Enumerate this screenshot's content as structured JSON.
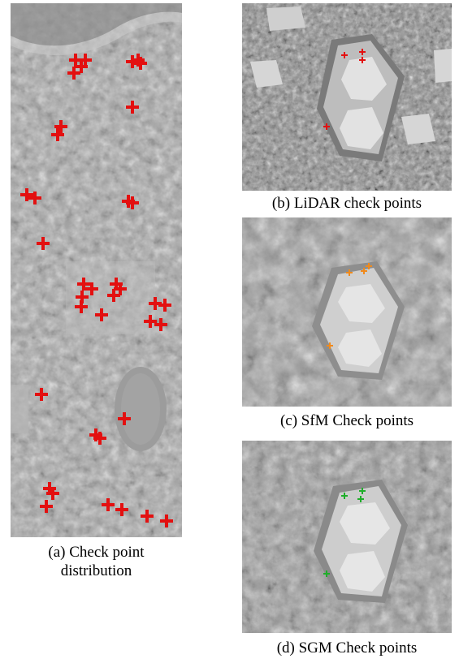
{
  "figure": {
    "panels": [
      {
        "id": "a",
        "caption_line1": "(a) Check point",
        "caption_line2": "distribution",
        "marker_color": "#e31010",
        "marker_count": 38
      },
      {
        "id": "b",
        "caption": "(b) LiDAR check points",
        "marker_color": "#e31010"
      },
      {
        "id": "c",
        "caption": "(c)  SfM Check points",
        "marker_color": "#f08a1c"
      },
      {
        "id": "d",
        "caption": "(d)  SGM Check points",
        "marker_color": "#1fae2a"
      }
    ]
  }
}
